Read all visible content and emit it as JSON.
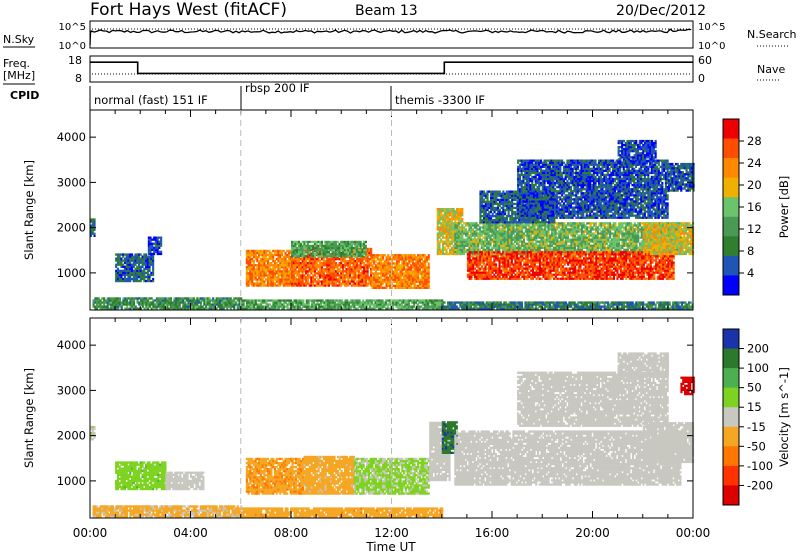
{
  "header": {
    "station": "Fort Hays West (fitACF)",
    "beam": "Beam 13",
    "date": "20/Dec/2012"
  },
  "top_panels": {
    "nsky_label": "N.Sky",
    "nsky_ticks": [
      "10^5",
      "10^0"
    ],
    "nsearch_label": "N.Search",
    "nsearch_ticks": [
      "10^5",
      "10^0"
    ],
    "freq_label": "Freq.",
    "freq_unit": "[MHz]",
    "freq_ticks": [
      "18",
      "8"
    ],
    "nave_label": "Nave",
    "nave_ticks": [
      "60",
      "0"
    ],
    "cpid_label": "CPID",
    "cpid_segments": [
      {
        "label": "normal (fast) 151 IF",
        "start_h": 0.0,
        "end_h": 6.0
      },
      {
        "label": "rbsp 200 IF",
        "start_h": 6.0,
        "end_h": 12.0
      },
      {
        "label": "themis -3300 IF",
        "start_h": 12.0,
        "end_h": 24.0
      }
    ],
    "freq_steps": [
      {
        "start_h": 0.0,
        "end_h": 1.9,
        "mhz": 15.6
      },
      {
        "start_h": 1.9,
        "end_h": 14.1,
        "mhz": 11.3
      },
      {
        "start_h": 14.1,
        "end_h": 24.0,
        "mhz": 15.6
      }
    ]
  },
  "colors": {
    "power": [
      "#0000ff",
      "#1f55b4",
      "#2f7f2f",
      "#4a9a55",
      "#6bc36b",
      "#f0b000",
      "#ff8800",
      "#ff4d00",
      "#ee0000"
    ],
    "velocity": [
      "#1a33aa",
      "#2b7a2b",
      "#4caf50",
      "#7ed321",
      "#c8c8c0",
      "#f5a623",
      "#ff7700",
      "#ff3300",
      "#dd0000"
    ],
    "missing": "#ffffff",
    "guide": "#bbbbbb"
  },
  "chart_data": [
    {
      "type": "heatmap",
      "title": "Power",
      "xlabel": "Time UT",
      "ylabel": "Slant Range [km]",
      "x_ticks": [
        "00:00",
        "04:00",
        "08:00",
        "12:00",
        "16:00",
        "20:00",
        "00:00"
      ],
      "y_ticks": [
        "1000",
        "2000",
        "3000",
        "4000"
      ],
      "xlim_hours": [
        0,
        24
      ],
      "ylim_km": [
        180,
        4600
      ],
      "colorbar": {
        "label": "Power [dB]",
        "ticks": [
          "28",
          "24",
          "20",
          "16",
          "12",
          "8",
          "4"
        ],
        "range": [
          0,
          30
        ]
      },
      "regions": [
        {
          "t0": 0.0,
          "t1": 0.2,
          "r0": 1800,
          "r1": 2200,
          "value": 6
        },
        {
          "t0": 1.0,
          "t1": 2.5,
          "r0": 800,
          "r1": 1400,
          "value": 6
        },
        {
          "t0": 2.3,
          "t1": 2.8,
          "r0": 1400,
          "r1": 1800,
          "value": 4
        },
        {
          "t0": 0.1,
          "t1": 6.0,
          "r0": 190,
          "r1": 420,
          "value": 10
        },
        {
          "t0": 6.0,
          "t1": 14.0,
          "r0": 190,
          "r1": 380,
          "value": 12
        },
        {
          "t0": 14.0,
          "t1": 24.0,
          "r0": 190,
          "r1": 350,
          "value": 8
        },
        {
          "t0": 6.2,
          "t1": 8.0,
          "r0": 700,
          "r1": 1500,
          "value": 22
        },
        {
          "t0": 8.0,
          "t1": 11.2,
          "r0": 700,
          "r1": 1550,
          "value": 24
        },
        {
          "t0": 11.2,
          "t1": 13.5,
          "r0": 650,
          "r1": 1400,
          "value": 22
        },
        {
          "t0": 8.0,
          "t1": 11.0,
          "r0": 1350,
          "r1": 1700,
          "value": 12
        },
        {
          "t0": 13.8,
          "t1": 14.8,
          "r0": 1400,
          "r1": 2400,
          "value": 18
        },
        {
          "t0": 14.5,
          "t1": 23.5,
          "r0": 1400,
          "r1": 2100,
          "value": 14
        },
        {
          "t0": 15.0,
          "t1": 23.2,
          "r0": 850,
          "r1": 1450,
          "value": 26
        },
        {
          "t0": 22.0,
          "t1": 24.0,
          "r0": 1400,
          "r1": 2100,
          "value": 18
        },
        {
          "t0": 15.5,
          "t1": 18.5,
          "r0": 2100,
          "r1": 2800,
          "value": 6
        },
        {
          "t0": 17.0,
          "t1": 23.0,
          "r0": 2200,
          "r1": 3500,
          "value": 5
        },
        {
          "t0": 23.0,
          "t1": 24.0,
          "r0": 2800,
          "r1": 3400,
          "value": 5
        },
        {
          "t0": 21.0,
          "t1": 22.5,
          "r0": 3400,
          "r1": 3900,
          "value": 4
        }
      ]
    },
    {
      "type": "heatmap",
      "title": "Velocity",
      "xlabel": "Time UT",
      "ylabel": "Slant Range [km]",
      "x_ticks": [
        "00:00",
        "04:00",
        "08:00",
        "12:00",
        "16:00",
        "20:00",
        "00:00"
      ],
      "y_ticks": [
        "1000",
        "2000",
        "3000",
        "4000"
      ],
      "xlim_hours": [
        0,
        24
      ],
      "ylim_km": [
        180,
        4600
      ],
      "colorbar": {
        "label": "Velocity [m s^-1]",
        "ticks": [
          "200",
          "100",
          "50",
          "15",
          "-15",
          "-50",
          "-100",
          "-200"
        ],
        "range": [
          -250,
          250
        ]
      },
      "regions": [
        {
          "t0": 0.0,
          "t1": 0.2,
          "r0": 1900,
          "r1": 2200,
          "value": 10
        },
        {
          "t0": 1.0,
          "t1": 3.0,
          "r0": 800,
          "r1": 1400,
          "value": 60
        },
        {
          "t0": 3.0,
          "t1": 4.5,
          "r0": 800,
          "r1": 1200,
          "value": 0
        },
        {
          "t0": 0.1,
          "t1": 6.0,
          "r0": 190,
          "r1": 420,
          "value": -40
        },
        {
          "t0": 6.0,
          "t1": 14.0,
          "r0": 190,
          "r1": 380,
          "value": -60
        },
        {
          "t0": 6.2,
          "t1": 8.5,
          "r0": 700,
          "r1": 1500,
          "value": -70
        },
        {
          "t0": 8.5,
          "t1": 10.5,
          "r0": 700,
          "r1": 1550,
          "value": -50
        },
        {
          "t0": 10.5,
          "t1": 13.5,
          "r0": 700,
          "r1": 1500,
          "value": 40
        },
        {
          "t0": 13.5,
          "t1": 14.3,
          "r0": 1000,
          "r1": 2300,
          "value": 0
        },
        {
          "t0": 14.0,
          "t1": 14.6,
          "r0": 1600,
          "r1": 2300,
          "value": 180
        },
        {
          "t0": 14.5,
          "t1": 23.5,
          "r0": 900,
          "r1": 2100,
          "value": 0
        },
        {
          "t0": 22.0,
          "t1": 24.0,
          "r0": 1400,
          "r1": 2300,
          "value": 0
        },
        {
          "t0": 17.0,
          "t1": 23.0,
          "r0": 2200,
          "r1": 3400,
          "value": 0
        },
        {
          "t0": 23.5,
          "t1": 24.0,
          "r0": 2900,
          "r1": 3300,
          "value": -220
        },
        {
          "t0": 21.0,
          "t1": 23.0,
          "r0": 3300,
          "r1": 3800,
          "value": 0
        }
      ]
    }
  ]
}
